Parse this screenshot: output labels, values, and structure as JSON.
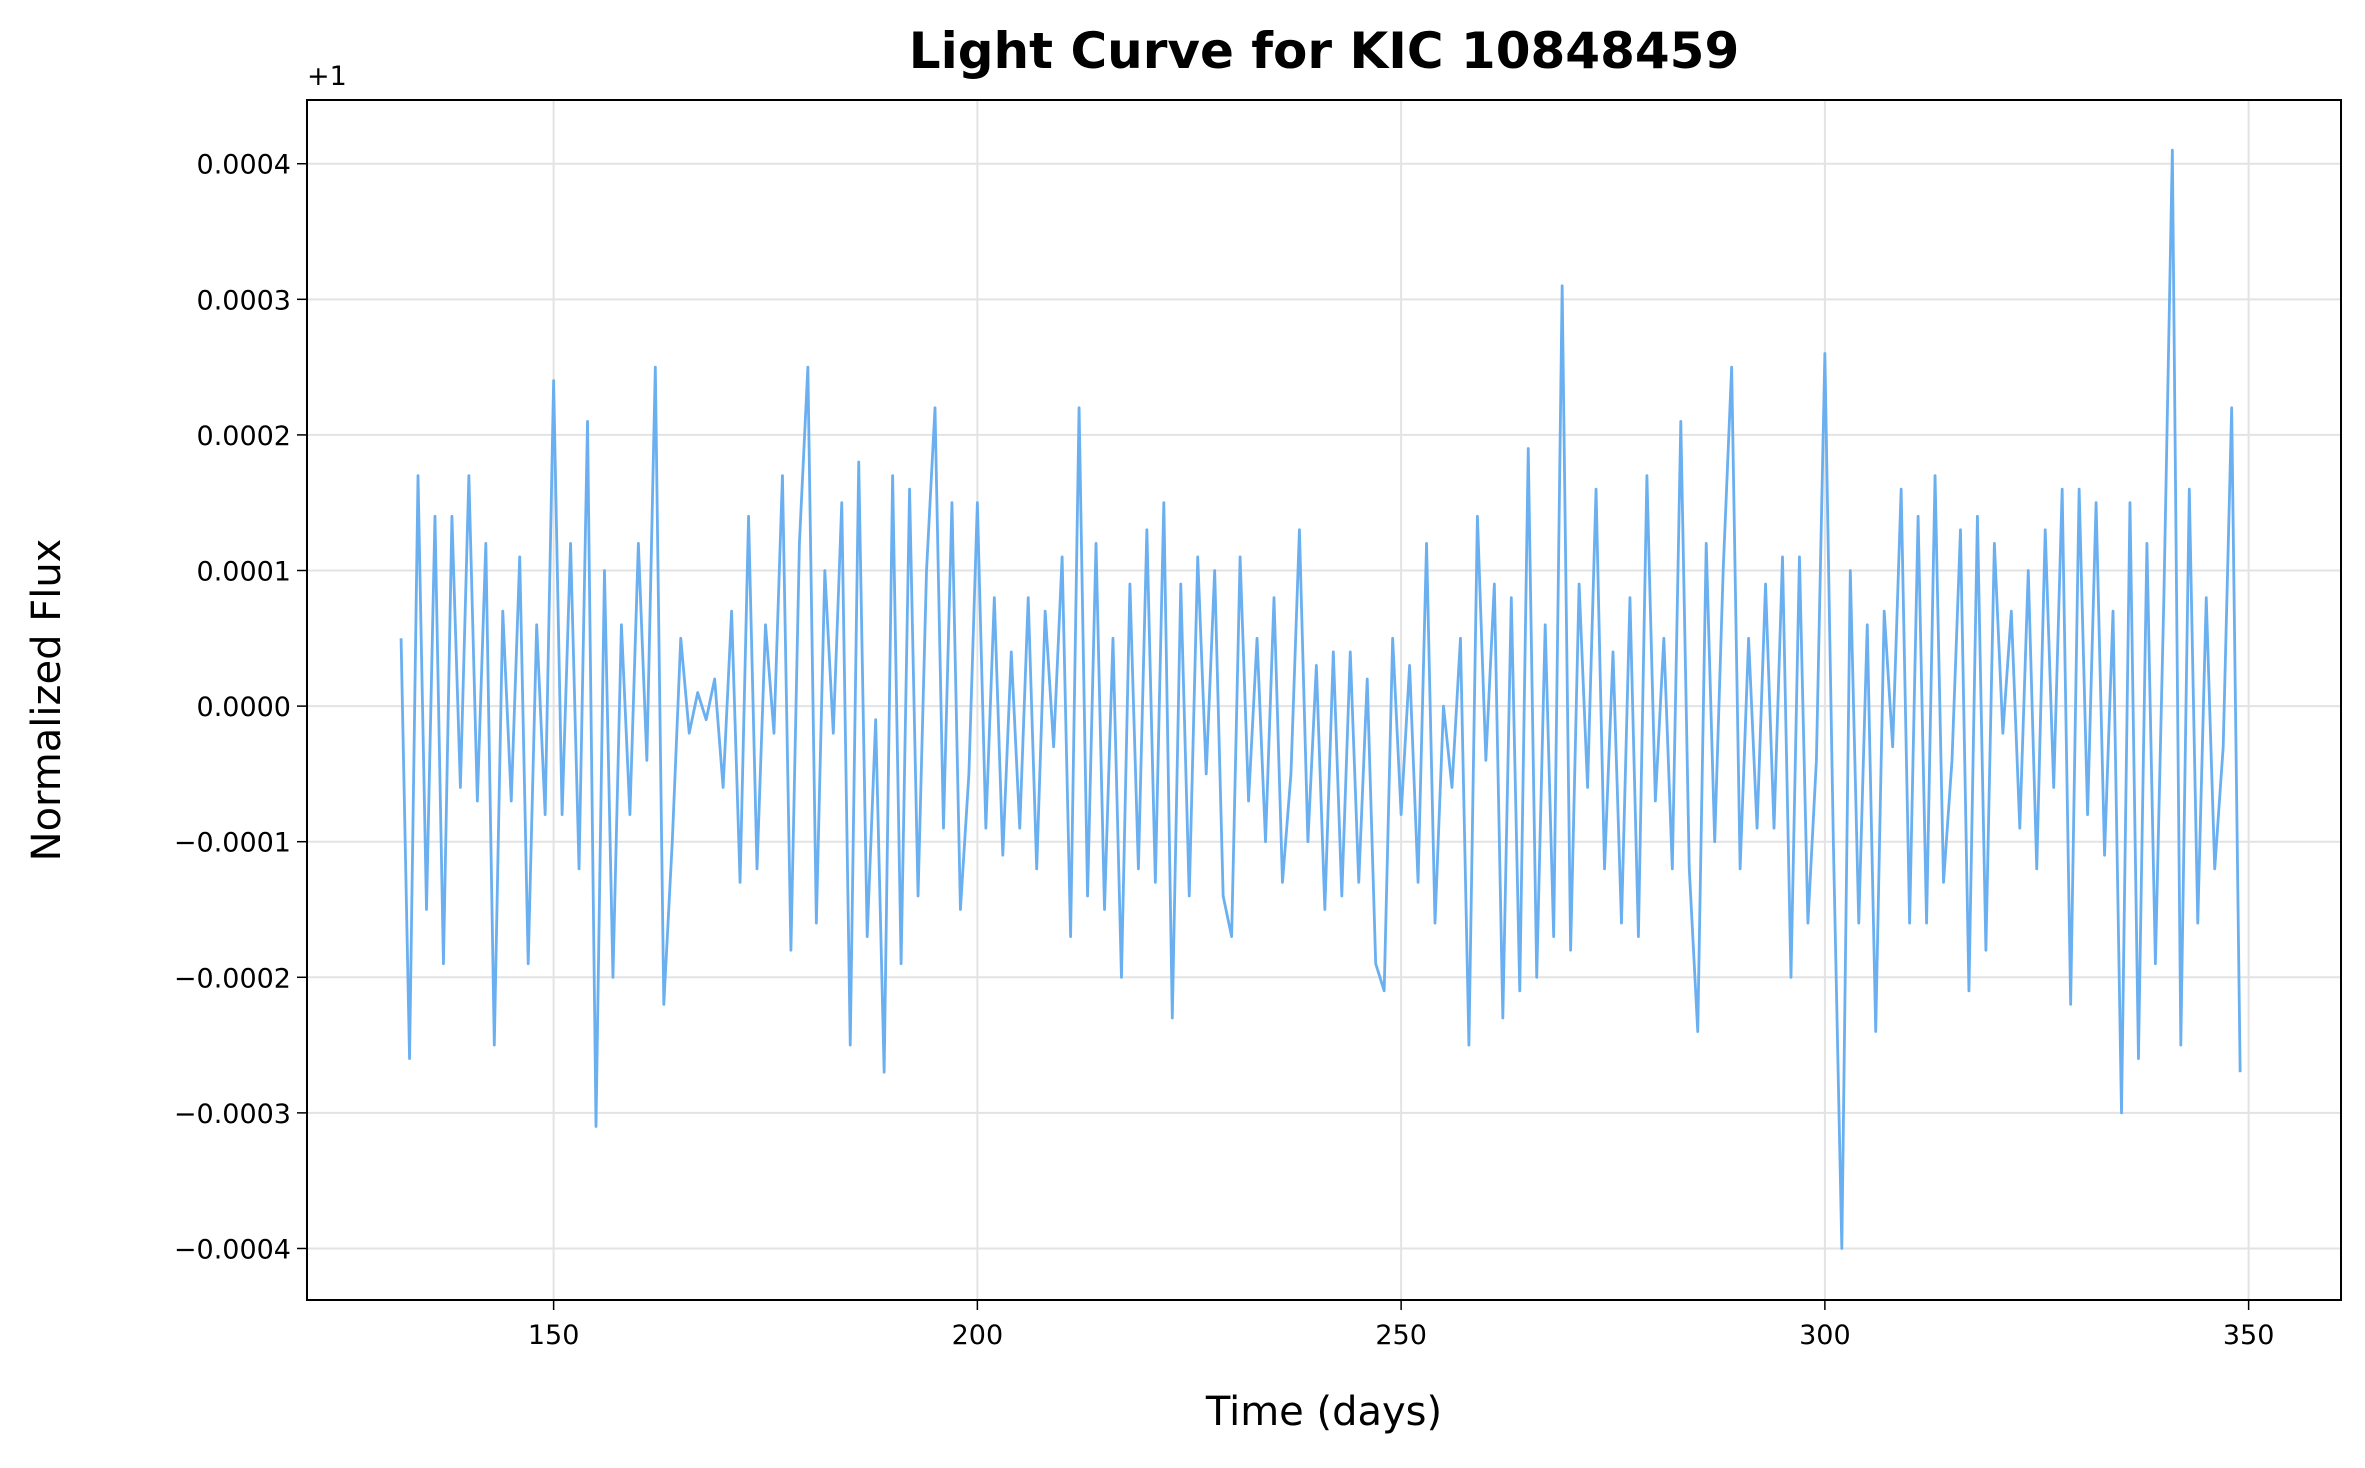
{
  "chart_data": {
    "type": "line",
    "title": "Light Curve for KIC 10848459",
    "xlabel": "Time (days)",
    "ylabel": "Normalized Flux",
    "y_offset_text": "+1",
    "xlim": [
      120.9,
      360.9
    ],
    "ylim": [
      -0.000438,
      0.000447
    ],
    "xticks": [
      150,
      200,
      250,
      300,
      350
    ],
    "yticks": [
      {
        "value": -0.0004,
        "label": "−0.0004"
      },
      {
        "value": -0.0003,
        "label": "−0.0003"
      },
      {
        "value": -0.0002,
        "label": "−0.0002"
      },
      {
        "value": -0.0001,
        "label": "−0.0001"
      },
      {
        "value": 0,
        "label": "0.0000"
      },
      {
        "value": 0.0001,
        "label": "0.0001"
      },
      {
        "value": 0.0002,
        "label": "0.0002"
      },
      {
        "value": 0.0003,
        "label": "0.0003"
      },
      {
        "value": 0.0004,
        "label": "0.0004"
      }
    ],
    "grid": true,
    "x": [
      132,
      133,
      134,
      135,
      136,
      137,
      138,
      139,
      140,
      141,
      142,
      143,
      144,
      145,
      146,
      147,
      148,
      149,
      150,
      151,
      152,
      153,
      154,
      155,
      156,
      157,
      158,
      159,
      160,
      161,
      162,
      163,
      164,
      165,
      166,
      167,
      168,
      169,
      170,
      171,
      172,
      173,
      174,
      175,
      176,
      177,
      178,
      179,
      180,
      181,
      182,
      183,
      184,
      185,
      186,
      187,
      188,
      189,
      190,
      191,
      192,
      193,
      194,
      195,
      196,
      197,
      198,
      199,
      200,
      201,
      202,
      203,
      204,
      205,
      206,
      207,
      208,
      209,
      210,
      211,
      212,
      213,
      214,
      215,
      216,
      217,
      218,
      219,
      220,
      221,
      222,
      223,
      224,
      225,
      226,
      227,
      228,
      229,
      230,
      231,
      232,
      233,
      234,
      235,
      236,
      237,
      238,
      239,
      240,
      241,
      242,
      243,
      244,
      245,
      246,
      247,
      248,
      249,
      250,
      251,
      252,
      253,
      254,
      255,
      256,
      257,
      258,
      259,
      260,
      261,
      262,
      263,
      264,
      265,
      266,
      267,
      268,
      269,
      270,
      271,
      272,
      273,
      274,
      275,
      276,
      277,
      278,
      279,
      280,
      281,
      282,
      283,
      284,
      285,
      286,
      287,
      288,
      289,
      290,
      291,
      292,
      293,
      294,
      295,
      296,
      297,
      298,
      299,
      300,
      301,
      302,
      303,
      304,
      305,
      306,
      307,
      308,
      309,
      310,
      311,
      312,
      313,
      314,
      315,
      316,
      317,
      318,
      319,
      320,
      321,
      322,
      323,
      324,
      325,
      326,
      327,
      328,
      329,
      330,
      331,
      332,
      333,
      334,
      335,
      336,
      337,
      338,
      339,
      340,
      341,
      342,
      343,
      344,
      345,
      346,
      347,
      348,
      349
    ],
    "series": [
      {
        "name": "Flux",
        "color": "#6aaff0",
        "values": [
          5e-05,
          -0.00026,
          0.00017,
          -0.00015,
          0.00014,
          -0.00019,
          0.00014,
          -6e-05,
          0.00017,
          -7e-05,
          0.00012,
          -0.00025,
          7e-05,
          -7e-05,
          0.00011,
          -0.00019,
          6e-05,
          -8e-05,
          0.00024,
          -8e-05,
          0.00012,
          -0.00012,
          0.00021,
          -0.00031,
          0.0001,
          -0.0002,
          6e-05,
          -8e-05,
          0.00012,
          -4e-05,
          0.00025,
          -0.00022,
          -0.0001,
          5e-05,
          -2e-05,
          1e-05,
          -1e-05,
          2e-05,
          -6e-05,
          7e-05,
          -0.00013,
          0.00014,
          -0.00012,
          6e-05,
          -2e-05,
          0.00017,
          -0.00018,
          0.00012,
          0.00025,
          -0.00016,
          0.0001,
          -2e-05,
          0.00015,
          -0.00025,
          0.00018,
          -0.00017,
          -1e-05,
          -0.00027,
          0.00017,
          -0.00019,
          0.00016,
          -0.00014,
          0.0001,
          0.00022,
          -9e-05,
          0.00015,
          -0.00015,
          -5e-05,
          0.00015,
          -9e-05,
          8e-05,
          -0.00011,
          4e-05,
          -9e-05,
          8e-05,
          -0.00012,
          7e-05,
          -3e-05,
          0.00011,
          -0.00017,
          0.00022,
          -0.00014,
          0.00012,
          -0.00015,
          5e-05,
          -0.0002,
          9e-05,
          -0.00012,
          0.00013,
          -0.00013,
          0.00015,
          -0.00023,
          9e-05,
          -0.00014,
          0.00011,
          -5e-05,
          0.0001,
          -0.00014,
          -0.00017,
          0.00011,
          -7e-05,
          5e-05,
          -0.0001,
          8e-05,
          -0.00013,
          -5e-05,
          0.00013,
          -0.0001,
          3e-05,
          -0.00015,
          4e-05,
          -0.00014,
          4e-05,
          -0.00013,
          2e-05,
          -0.00019,
          -0.00021,
          5e-05,
          -8e-05,
          3e-05,
          -0.00013,
          0.00012,
          -0.00016,
          0,
          -6e-05,
          5e-05,
          -0.00025,
          0.00014,
          -4e-05,
          9e-05,
          -0.00023,
          8e-05,
          -0.00021,
          0.00019,
          -0.0002,
          6e-05,
          -0.00017,
          0.00031,
          -0.00018,
          9e-05,
          -6e-05,
          0.00016,
          -0.00012,
          4e-05,
          -0.00016,
          8e-05,
          -0.00017,
          0.00017,
          -7e-05,
          5e-05,
          -0.00012,
          0.00021,
          -0.00012,
          -0.00024,
          0.00012,
          -0.0001,
          0.0001,
          0.00025,
          -0.00012,
          5e-05,
          -9e-05,
          9e-05,
          -9e-05,
          0.00011,
          -0.0002,
          0.00011,
          -0.00016,
          -4e-05,
          0.00026,
          -0.0001,
          -0.0004,
          0.0001,
          -0.00016,
          6e-05,
          -0.00024,
          7e-05,
          -3e-05,
          0.00016,
          -0.00016,
          0.00014,
          -0.00016,
          0.00017,
          -0.00013,
          -4e-05,
          0.00013,
          -0.00021,
          0.00014,
          -0.00018,
          0.00012,
          -2e-05,
          7e-05,
          -9e-05,
          0.0001,
          -0.00012,
          0.00013,
          -6e-05,
          0.00016,
          -0.00022,
          0.00016,
          -8e-05,
          0.00015,
          -0.00011,
          7e-05,
          -0.0003,
          0.00015,
          -0.00026,
          0.00012,
          -0.00019,
          8e-05,
          0.00041,
          -0.00025,
          0.00016,
          -0.00016,
          8e-05,
          -0.00012,
          -3e-05,
          0.00022,
          -0.00027
        ]
      }
    ]
  }
}
